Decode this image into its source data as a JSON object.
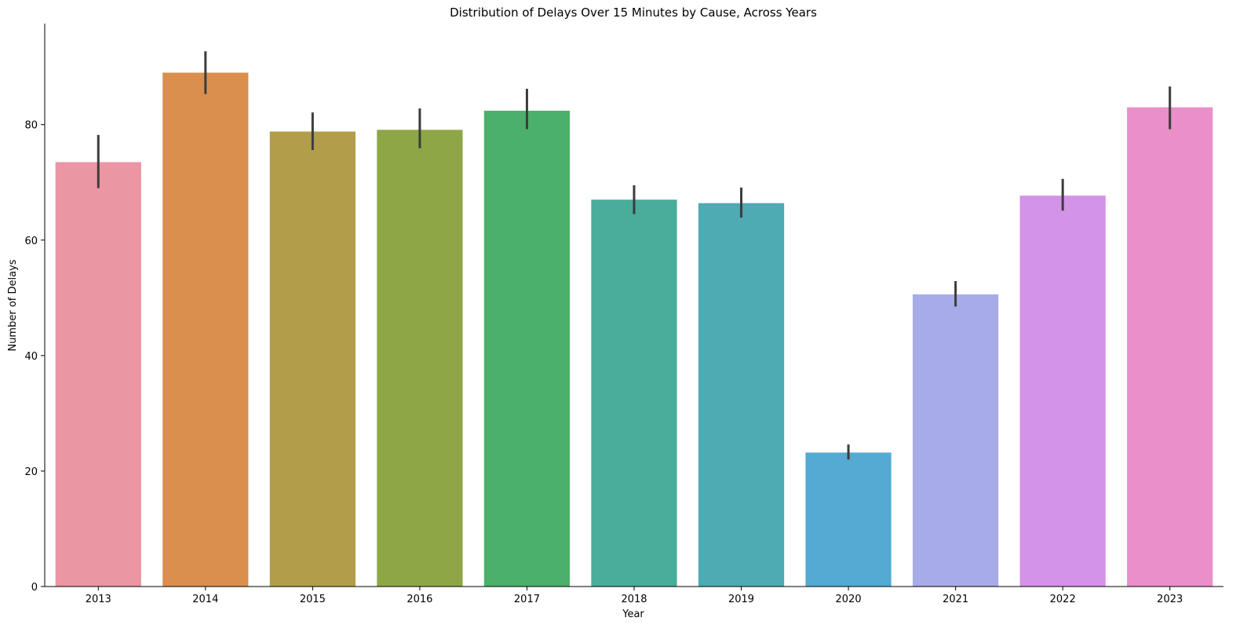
{
  "chart_data": {
    "type": "bar",
    "title": "Distribution of Delays Over 15 Minutes by Cause, Across Years",
    "xlabel": "Year",
    "ylabel": "Number of Delays",
    "ylim": [
      0,
      97.5
    ],
    "yticks": [
      0,
      20,
      40,
      60,
      80
    ],
    "grid": false,
    "legend": "none",
    "categories": [
      "2013",
      "2014",
      "2015",
      "2016",
      "2017",
      "2018",
      "2019",
      "2020",
      "2021",
      "2022",
      "2023"
    ],
    "values": [
      73.5,
      89.0,
      78.8,
      79.1,
      82.4,
      67.0,
      66.4,
      23.2,
      50.6,
      67.7,
      83.0
    ],
    "error_low": [
      69.0,
      85.3,
      75.6,
      75.9,
      79.2,
      64.5,
      63.9,
      22.0,
      48.5,
      65.1,
      79.2
    ],
    "error_high": [
      78.2,
      92.7,
      82.1,
      82.8,
      86.2,
      69.5,
      69.1,
      24.6,
      52.9,
      70.6,
      86.6
    ],
    "colors": [
      "#EA96A3",
      "#DA8F4E",
      "#B29D4A",
      "#8EA746",
      "#4BB06B",
      "#4AAC9A",
      "#4EAAB3",
      "#54AAD3",
      "#A7ACE8",
      "#D393E6",
      "#E890C7"
    ],
    "error_color": "#3c3c3c"
  }
}
